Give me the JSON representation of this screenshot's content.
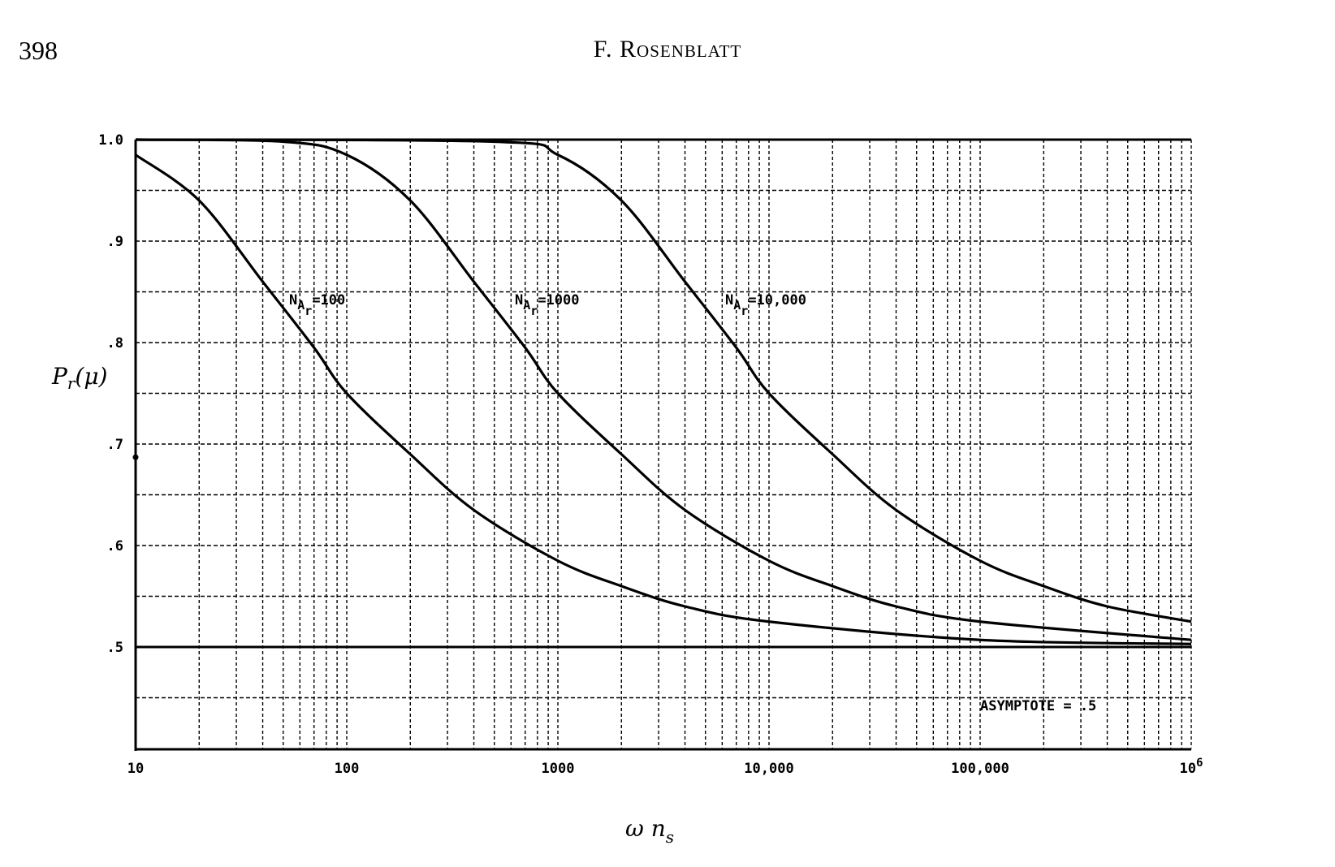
{
  "page": {
    "number": "398",
    "running_head": "F. Rosenblatt"
  },
  "chart_data": {
    "type": "line",
    "title": "",
    "xlabel": "ω n_s",
    "ylabel": "P_r(μ)",
    "xscale": "log",
    "xlim": [
      10,
      1000000
    ],
    "ylim": [
      0.4,
      1.0
    ],
    "grid": true,
    "x_tick_labels": [
      "10",
      "100",
      "1000",
      "10,000",
      "100,000",
      "10^6"
    ],
    "x_ticks": [
      10,
      100,
      1000,
      10000,
      100000,
      1000000
    ],
    "y_tick_labels": [
      "1.0",
      ".9",
      ".8",
      ".7",
      ".6",
      ".5"
    ],
    "y_ticks": [
      1.0,
      0.9,
      0.8,
      0.7,
      0.6,
      0.5
    ],
    "series": [
      {
        "name": "N_Ar = 100",
        "label": "N",
        "label_sub": "A",
        "label_subsub": "r",
        "label_value": "=100",
        "x": [
          10,
          20,
          40,
          70,
          100,
          200,
          400,
          1000,
          2000,
          4000,
          10000,
          100000,
          1000000
        ],
        "values": [
          0.985,
          0.94,
          0.86,
          0.795,
          0.75,
          0.69,
          0.635,
          0.585,
          0.56,
          0.54,
          0.525,
          0.507,
          0.503
        ]
      },
      {
        "name": "N_Ar = 1000",
        "label": "N",
        "label_sub": "A",
        "label_subsub": "r",
        "label_value": "=1000",
        "x": [
          10,
          50,
          100,
          200,
          400,
          700,
          1000,
          2000,
          4000,
          10000,
          20000,
          40000,
          100000,
          1000000
        ],
        "values": [
          1.0,
          0.998,
          0.985,
          0.94,
          0.86,
          0.795,
          0.75,
          0.69,
          0.635,
          0.585,
          0.56,
          0.54,
          0.525,
          0.507
        ]
      },
      {
        "name": "N_Ar = 10,000",
        "label": "N",
        "label_sub": "A",
        "label_subsub": "r",
        "label_value": "=10,000",
        "x": [
          10,
          500,
          1000,
          2000,
          4000,
          7000,
          10000,
          20000,
          40000,
          100000,
          200000,
          400000,
          1000000
        ],
        "values": [
          1.0,
          0.998,
          0.985,
          0.94,
          0.86,
          0.795,
          0.75,
          0.69,
          0.635,
          0.585,
          0.56,
          0.54,
          0.525
        ]
      }
    ],
    "annotations": [
      {
        "text": "ASYMPTOTE = .5",
        "y": 0.5
      }
    ]
  },
  "labels": {
    "asymptote": "ASYMPTOTE = .5",
    "ylabel_main": "P",
    "ylabel_sub": "r",
    "ylabel_arg": "(μ)",
    "xlabel_main": "ω n",
    "xlabel_sub": "s"
  }
}
